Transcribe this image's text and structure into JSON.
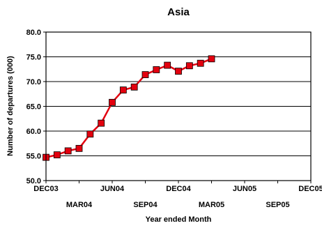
{
  "chart_data": {
    "type": "line",
    "title": "Asia",
    "xlabel": "Year ended Month",
    "ylabel": "Number of departures (000)",
    "ylim": [
      50.0,
      80.0
    ],
    "yticks": [
      "50.0",
      "55.0",
      "60.0",
      "65.0",
      "70.0",
      "75.0",
      "80.0"
    ],
    "xlim": [
      0,
      24
    ],
    "xticks": [
      {
        "value": 0,
        "label": "DEC03"
      },
      {
        "value": 3,
        "label": "MAR04"
      },
      {
        "value": 6,
        "label": "JUN04"
      },
      {
        "value": 9,
        "label": "SEP04"
      },
      {
        "value": 12,
        "label": "DEC04"
      },
      {
        "value": 15,
        "label": "MAR05"
      },
      {
        "value": 18,
        "label": "JUN05"
      },
      {
        "value": 21,
        "label": "SEP05"
      },
      {
        "value": 24,
        "label": "DEC05"
      }
    ],
    "grid": "horizontal",
    "series": [
      {
        "color": "#e3000f",
        "marker": "square",
        "x": [
          0,
          1,
          2,
          3,
          4,
          5,
          6,
          7,
          8,
          9,
          10,
          11,
          12,
          13,
          14,
          15
        ],
        "values": [
          54.7,
          55.2,
          56.0,
          56.5,
          59.4,
          61.6,
          65.8,
          68.3,
          68.9,
          71.4,
          72.4,
          73.3,
          72.1,
          73.2,
          73.7,
          74.6
        ]
      }
    ]
  }
}
